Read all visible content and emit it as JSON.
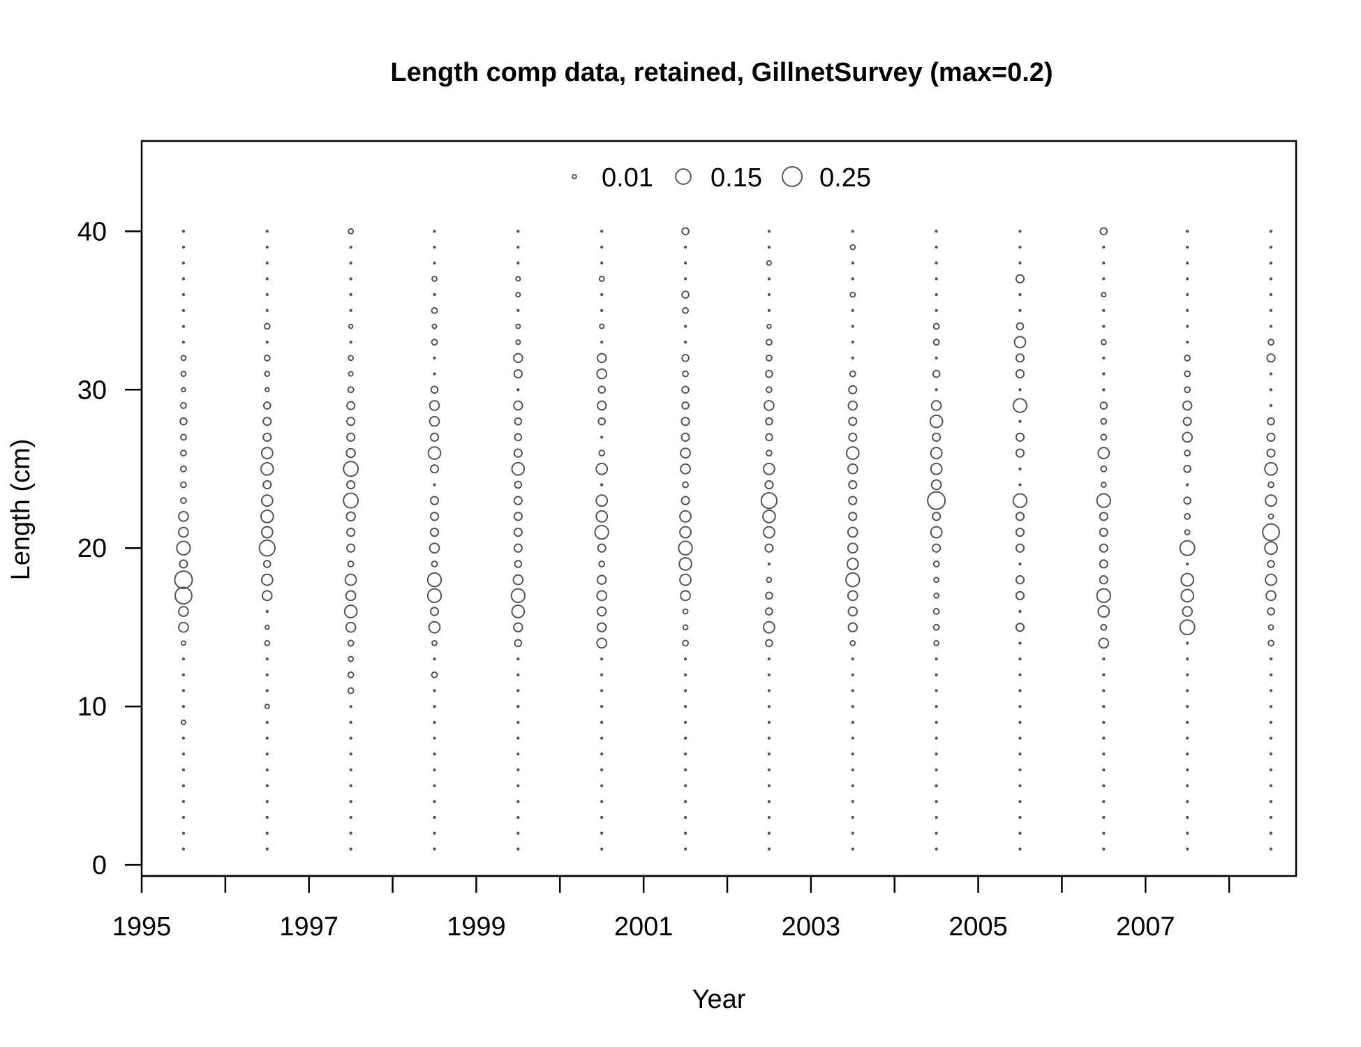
{
  "chart_data": {
    "type": "scatter",
    "title": "Length comp data, retained, GillnetSurvey (max=0.2)",
    "xlabel": "Year",
    "ylabel": "Length (cm)",
    "xlim": [
      1995,
      2008.8
    ],
    "ylim": [
      -0.7,
      45.7
    ],
    "x_ticks": [
      1995,
      1996,
      1997,
      1998,
      1999,
      2000,
      2001,
      2002,
      2003,
      2004,
      2005,
      2006,
      2007,
      2008
    ],
    "x_tick_labels": [
      "1995",
      "1997",
      "1999",
      "2001",
      "2003",
      "2005",
      "2007"
    ],
    "y_ticks": [
      0,
      10,
      20,
      30,
      40
    ],
    "y_tick_labels": [
      "0",
      "10",
      "20",
      "30",
      "40"
    ],
    "grid": false,
    "legend": {
      "placement": "top",
      "entries": [
        {
          "label": "0.01",
          "value": 0.01
        },
        {
          "label": "0.15",
          "value": 0.15
        },
        {
          "label": "0.25",
          "value": 0.25
        }
      ]
    },
    "bubble_max": 0.25,
    "lengths": [
      1,
      40
    ],
    "years": [
      1995.5,
      1996.5,
      1997.5,
      1998.5,
      1999.5,
      2000.5,
      2001.5,
      2002.5,
      2003.5,
      2004.5,
      2005.5,
      2006.5,
      2007.5,
      2008.5
    ],
    "series": [
      {
        "year": 1995.5,
        "values": {
          "9": 0.012,
          "14": 0.012,
          "15": 0.06,
          "16": 0.06,
          "17": 0.18,
          "18": 0.2,
          "19": 0.04,
          "20": 0.12,
          "21": 0.06,
          "22": 0.06,
          "23": 0.02,
          "24": 0.02,
          "25": 0.02,
          "26": 0.02,
          "27": 0.02,
          "28": 0.03,
          "29": 0.02,
          "30": 0.01,
          "31": 0.015,
          "32": 0.015
        }
      },
      {
        "year": 1996.5,
        "values": {
          "10": 0.012,
          "14": 0.015,
          "15": 0.01,
          "17": 0.06,
          "18": 0.08,
          "19": 0.03,
          "20": 0.16,
          "21": 0.08,
          "22": 0.1,
          "23": 0.08,
          "24": 0.04,
          "25": 0.1,
          "26": 0.08,
          "27": 0.04,
          "28": 0.04,
          "29": 0.03,
          "30": 0.01,
          "31": 0.015,
          "32": 0.02,
          "34": 0.02
        }
      },
      {
        "year": 1997.5,
        "values": {
          "11": 0.02,
          "12": 0.02,
          "13": 0.015,
          "14": 0.02,
          "15": 0.06,
          "16": 0.1,
          "17": 0.06,
          "18": 0.08,
          "19": 0.02,
          "20": 0.04,
          "21": 0.04,
          "22": 0.05,
          "23": 0.14,
          "24": 0.04,
          "25": 0.14,
          "26": 0.05,
          "27": 0.04,
          "28": 0.04,
          "29": 0.04,
          "30": 0.02,
          "31": 0.012,
          "32": 0.015,
          "34": 0.01,
          "40": 0.015
        }
      },
      {
        "year": 1998.5,
        "values": {
          "12": 0.02,
          "14": 0.015,
          "15": 0.08,
          "16": 0.04,
          "17": 0.12,
          "18": 0.12,
          "19": 0.02,
          "20": 0.06,
          "21": 0.04,
          "22": 0.04,
          "23": 0.04,
          "25": 0.04,
          "26": 0.1,
          "27": 0.04,
          "28": 0.06,
          "29": 0.06,
          "30": 0.03,
          "33": 0.02,
          "34": 0.012,
          "35": 0.02,
          "37": 0.015
        }
      },
      {
        "year": 1999.5,
        "values": {
          "14": 0.03,
          "15": 0.05,
          "16": 0.1,
          "17": 0.12,
          "18": 0.06,
          "19": 0.03,
          "20": 0.04,
          "21": 0.04,
          "22": 0.04,
          "23": 0.04,
          "24": 0.03,
          "25": 0.1,
          "26": 0.04,
          "27": 0.03,
          "28": 0.03,
          "29": 0.05,
          "31": 0.04,
          "32": 0.05,
          "33": 0.012,
          "34": 0.012,
          "36": 0.012,
          "37": 0.012
        }
      },
      {
        "year": 2000.5,
        "values": {
          "14": 0.06,
          "15": 0.05,
          "16": 0.05,
          "17": 0.06,
          "18": 0.05,
          "19": 0.02,
          "20": 0.04,
          "21": 0.12,
          "22": 0.08,
          "23": 0.08,
          "25": 0.08,
          "26": 0.02,
          "28": 0.03,
          "29": 0.05,
          "30": 0.03,
          "31": 0.06,
          "32": 0.05,
          "34": 0.012,
          "37": 0.015
        }
      },
      {
        "year": 2001.5,
        "values": {
          "14": 0.02,
          "15": 0.015,
          "16": 0.015,
          "17": 0.06,
          "18": 0.08,
          "19": 0.1,
          "20": 0.12,
          "21": 0.08,
          "22": 0.08,
          "23": 0.04,
          "24": 0.02,
          "25": 0.06,
          "26": 0.06,
          "27": 0.04,
          "28": 0.04,
          "29": 0.03,
          "30": 0.03,
          "31": 0.02,
          "32": 0.03,
          "35": 0.02,
          "36": 0.03,
          "40": 0.03
        }
      },
      {
        "year": 2002.5,
        "values": {
          "14": 0.03,
          "15": 0.08,
          "16": 0.03,
          "17": 0.03,
          "18": 0.015,
          "20": 0.04,
          "21": 0.08,
          "22": 0.1,
          "23": 0.16,
          "24": 0.04,
          "25": 0.08,
          "26": 0.02,
          "27": 0.03,
          "28": 0.03,
          "29": 0.06,
          "30": 0.02,
          "31": 0.03,
          "32": 0.02,
          "33": 0.02,
          "34": 0.01,
          "38": 0.012
        }
      },
      {
        "year": 2003.5,
        "values": {
          "14": 0.015,
          "15": 0.05,
          "16": 0.05,
          "17": 0.06,
          "18": 0.12,
          "19": 0.08,
          "20": 0.06,
          "21": 0.06,
          "22": 0.04,
          "23": 0.04,
          "24": 0.04,
          "25": 0.06,
          "26": 0.1,
          "27": 0.04,
          "28": 0.04,
          "29": 0.05,
          "30": 0.04,
          "31": 0.02,
          "36": 0.015,
          "39": 0.015
        }
      },
      {
        "year": 2004.5,
        "values": {
          "14": 0.015,
          "15": 0.02,
          "16": 0.02,
          "17": 0.015,
          "18": 0.015,
          "19": 0.02,
          "20": 0.04,
          "21": 0.08,
          "22": 0.04,
          "23": 0.2,
          "24": 0.06,
          "25": 0.08,
          "26": 0.08,
          "27": 0.04,
          "28": 0.1,
          "29": 0.06,
          "31": 0.03,
          "33": 0.02,
          "34": 0.02
        }
      },
      {
        "year": 2005.5,
        "values": {
          "15": 0.04,
          "17": 0.04,
          "18": 0.04,
          "20": 0.04,
          "21": 0.04,
          "22": 0.04,
          "23": 0.12,
          "26": 0.04,
          "27": 0.04,
          "29": 0.12,
          "31": 0.04,
          "32": 0.04,
          "33": 0.08,
          "34": 0.03,
          "37": 0.04
        }
      },
      {
        "year": 2006.5,
        "values": {
          "14": 0.06,
          "15": 0.02,
          "16": 0.08,
          "17": 0.12,
          "18": 0.04,
          "19": 0.04,
          "20": 0.04,
          "21": 0.04,
          "22": 0.04,
          "23": 0.12,
          "24": 0.015,
          "25": 0.02,
          "26": 0.08,
          "27": 0.02,
          "28": 0.02,
          "29": 0.03,
          "33": 0.015,
          "36": 0.012,
          "40": 0.03
        }
      },
      {
        "year": 2007.5,
        "values": {
          "15": 0.14,
          "16": 0.06,
          "17": 0.1,
          "18": 0.1,
          "20": 0.14,
          "21": 0.015,
          "22": 0.02,
          "23": 0.03,
          "25": 0.03,
          "26": 0.02,
          "27": 0.06,
          "28": 0.04,
          "29": 0.05,
          "30": 0.02,
          "31": 0.02,
          "32": 0.02
        }
      },
      {
        "year": 2008.5,
        "values": {
          "14": 0.02,
          "15": 0.015,
          "16": 0.03,
          "17": 0.06,
          "18": 0.08,
          "19": 0.03,
          "20": 0.1,
          "21": 0.18,
          "22": 0.015,
          "23": 0.08,
          "24": 0.02,
          "25": 0.1,
          "26": 0.04,
          "27": 0.04,
          "28": 0.03,
          "32": 0.04,
          "33": 0.02
        }
      }
    ]
  }
}
